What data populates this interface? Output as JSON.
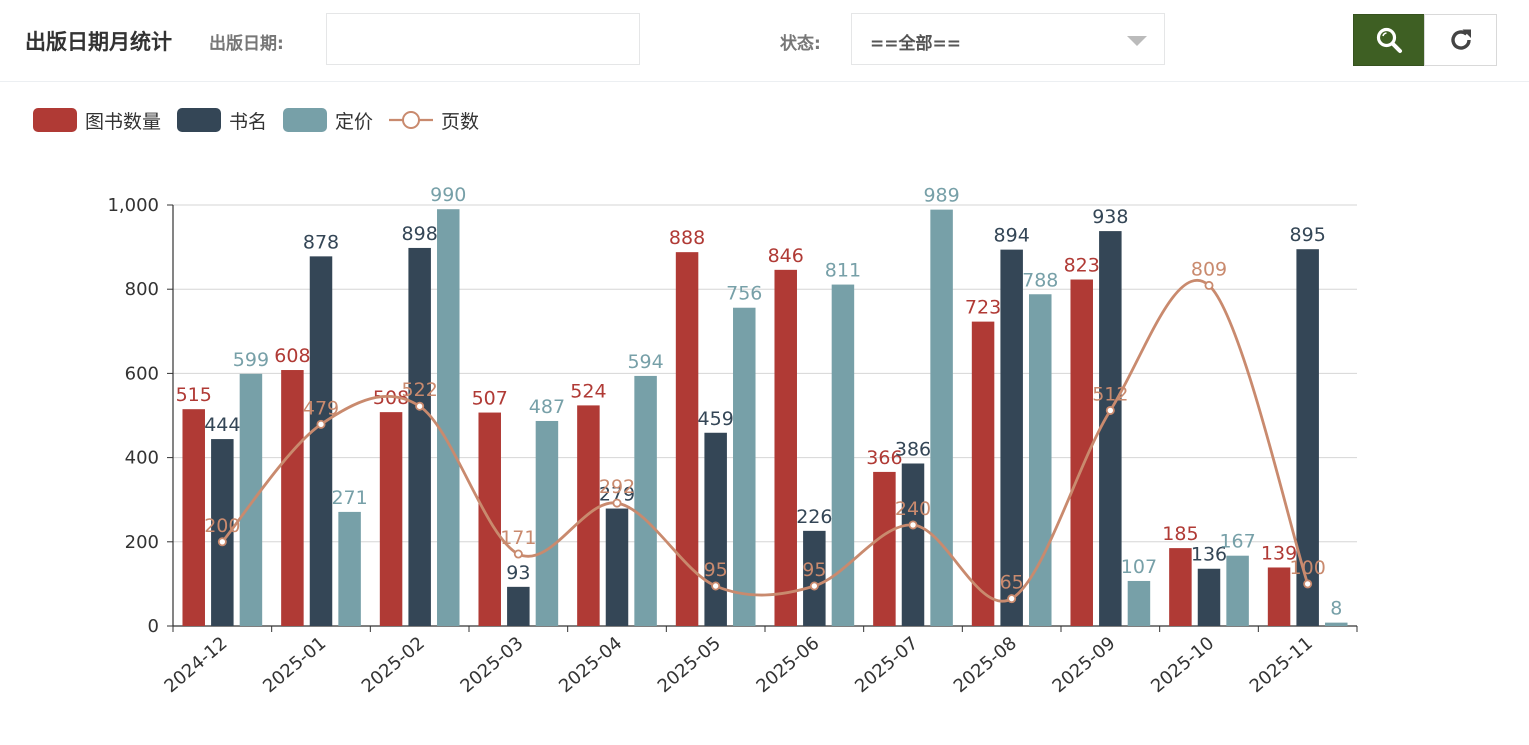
{
  "header": {
    "title": "出版日期月统计",
    "date_label": "出版日期:",
    "date_value": "",
    "status_label": "状态:",
    "status_value": "==全部==",
    "search_button_icon": "search-icon",
    "refresh_button_icon": "refresh-icon"
  },
  "colors": {
    "books": "#b03a35",
    "names": "#344656",
    "price": "#77a0a8",
    "pages": "#c98a6e",
    "search_bg": "#3e5f23"
  },
  "legend": [
    {
      "key": "books",
      "label": "图书数量",
      "type": "bar"
    },
    {
      "key": "names",
      "label": "书名",
      "type": "bar"
    },
    {
      "key": "price",
      "label": "定价",
      "type": "bar"
    },
    {
      "key": "pages",
      "label": "页数",
      "type": "line"
    }
  ],
  "chart_data": {
    "type": "bar",
    "title": "",
    "xlabel": "",
    "ylabel": "",
    "ylim": [
      0,
      1000
    ],
    "yticks": [
      0,
      200,
      400,
      600,
      800,
      1000
    ],
    "ytick_labels": [
      "0",
      "200",
      "400",
      "600",
      "800",
      "1,000"
    ],
    "grid": true,
    "legend_position": "top-left",
    "categories": [
      "2024-12",
      "2025-01",
      "2025-02",
      "2025-03",
      "2025-04",
      "2025-05",
      "2025-06",
      "2025-07",
      "2025-08",
      "2025-09",
      "2025-10",
      "2025-11"
    ],
    "series": [
      {
        "name": "图书数量",
        "key": "books",
        "type": "bar",
        "values": [
          515,
          608,
          508,
          507,
          524,
          888,
          846,
          366,
          723,
          823,
          185,
          139
        ]
      },
      {
        "name": "书名",
        "key": "names",
        "type": "bar",
        "values": [
          444,
          878,
          898,
          93,
          279,
          459,
          226,
          386,
          894,
          938,
          136,
          895
        ]
      },
      {
        "name": "定价",
        "key": "price",
        "type": "bar",
        "values": [
          599,
          271,
          990,
          487,
          594,
          756,
          811,
          989,
          788,
          107,
          167,
          8
        ]
      },
      {
        "name": "页数",
        "key": "pages",
        "type": "line",
        "smooth": true,
        "values": [
          200,
          479,
          522,
          171,
          292,
          95,
          95,
          240,
          65,
          512,
          809,
          100
        ]
      }
    ]
  }
}
